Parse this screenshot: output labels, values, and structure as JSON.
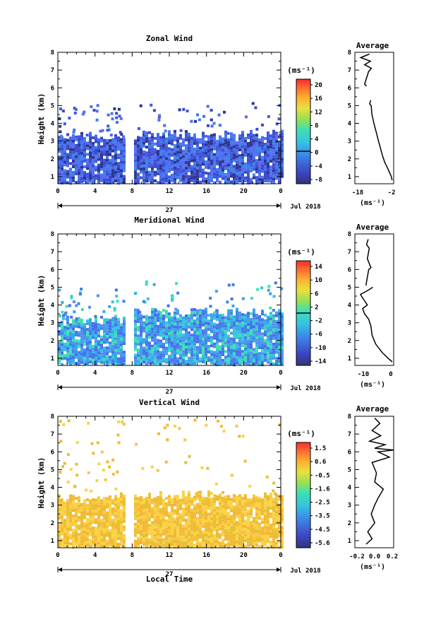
{
  "chart_data": [
    {
      "type": "heatmap",
      "title": "Zonal Wind",
      "ylabel": "Height (km)",
      "yticks": [
        "1",
        "2",
        "3",
        "4",
        "5",
        "6",
        "7",
        "8"
      ],
      "xticks": [
        "0",
        "4",
        "8",
        "12",
        "16",
        "20",
        "0"
      ],
      "ylim": [
        0.6,
        8.0
      ],
      "xlim": [
        0,
        24
      ],
      "date_label": "27",
      "month_label": "Jul 2018",
      "colorbar_unit": "(ms⁻¹)",
      "colorbar_ticks": [
        "20",
        "16",
        "12",
        "8",
        "4",
        "0",
        "-4",
        "-8"
      ],
      "colorbar_range": [
        -10,
        22
      ],
      "data_regions": [
        {
          "t_start": 0,
          "t_end": 7.0,
          "h_bottom": 0.7,
          "h_top": 3.3
        },
        {
          "t_start": 8.2,
          "t_end": 24,
          "h_bottom": 0.7,
          "h_top": 3.4
        }
      ],
      "profile": {
        "title": "Average",
        "xlabel": "(ms⁻¹)",
        "xticks": [
          "-18",
          "-2"
        ],
        "xlim": [
          -20,
          0
        ],
        "points": [
          [
            -0.8,
            0.8
          ],
          [
            -1.2,
            1.0
          ],
          [
            -2.0,
            1.2
          ],
          [
            -3.2,
            1.5
          ],
          [
            -4.6,
            1.8
          ],
          [
            -5.8,
            2.2
          ],
          [
            -6.8,
            2.6
          ],
          [
            -7.8,
            3.0
          ],
          [
            -9.0,
            3.5
          ],
          [
            -10.2,
            4.0
          ],
          [
            -11.2,
            4.5
          ],
          [
            -11.6,
            5.0
          ],
          [
            -12.4,
            5.1
          ],
          [
            -11.8,
            5.3
          ]
        ],
        "upper_points": [
          [
            -14,
            6.1
          ],
          [
            -15,
            6.2
          ],
          [
            -13,
            6.9
          ],
          [
            -11.5,
            7.1
          ],
          [
            -15,
            7.3
          ],
          [
            -12,
            7.5
          ],
          [
            -17,
            7.7
          ],
          [
            -12.5,
            7.9
          ]
        ]
      }
    },
    {
      "type": "heatmap",
      "title": "Meridional Wind",
      "ylabel": "Height (km)",
      "yticks": [
        "1",
        "2",
        "3",
        "4",
        "5",
        "6",
        "7",
        "8"
      ],
      "xticks": [
        "0",
        "4",
        "8",
        "12",
        "16",
        "20",
        "0"
      ],
      "ylim": [
        0.6,
        8.0
      ],
      "xlim": [
        0,
        24
      ],
      "date_label": "27",
      "month_label": "Jul 2018",
      "colorbar_unit": "(ms⁻¹)",
      "colorbar_ticks": [
        "14",
        "10",
        "6",
        "2",
        "-2",
        "-6",
        "-10",
        "-14"
      ],
      "colorbar_range": [
        -16,
        16
      ],
      "data_regions": [
        {
          "t_start": 0,
          "t_end": 7.0,
          "h_bottom": 0.7,
          "h_top": 3.2
        },
        {
          "t_start": 8.2,
          "t_end": 24,
          "h_bottom": 0.7,
          "h_top": 3.6
        }
      ],
      "profile": {
        "title": "Average",
        "xlabel": "(ms⁻¹)",
        "xticks": [
          "-10",
          "0"
        ],
        "xlim": [
          -13,
          1
        ],
        "points": [
          [
            0.5,
            0.8
          ],
          [
            -1.0,
            1.0
          ],
          [
            -3.0,
            1.3
          ],
          [
            -5.5,
            1.8
          ],
          [
            -6.8,
            2.3
          ],
          [
            -7.2,
            2.8
          ],
          [
            -8.0,
            3.2
          ],
          [
            -9.5,
            3.5
          ],
          [
            -10.2,
            3.8
          ],
          [
            -8.5,
            4.0
          ],
          [
            -9.8,
            4.3
          ],
          [
            -11.0,
            4.6
          ],
          [
            -8.5,
            4.8
          ],
          [
            -6.5,
            5.0
          ]
        ],
        "upper_points": [
          [
            -9,
            5.1
          ],
          [
            -8,
            6.0
          ],
          [
            -7.2,
            6.1
          ],
          [
            -8.5,
            6.6
          ],
          [
            -7.8,
            7.2
          ],
          [
            -8.8,
            7.4
          ],
          [
            -8.2,
            7.7
          ]
        ]
      }
    },
    {
      "type": "heatmap",
      "title": "Vertical Wind",
      "ylabel": "Height (km)",
      "yticks": [
        "1",
        "2",
        "3",
        "4",
        "5",
        "6",
        "7",
        "8"
      ],
      "xticks": [
        "0",
        "4",
        "8",
        "12",
        "16",
        "20",
        "0"
      ],
      "ylim": [
        0.6,
        8.0
      ],
      "xlim": [
        0,
        24
      ],
      "date_label": "27",
      "month_label": "Jul 2018",
      "colorbar_unit": "(ms⁻¹)",
      "colorbar_ticks": [
        "1.5",
        "0.6",
        "-0.5",
        "-1.6",
        "-2.5",
        "-3.5",
        "-4.5",
        "-5.6"
      ],
      "colorbar_range": [
        -6,
        2
      ],
      "data_regions": [
        {
          "t_start": 0,
          "t_end": 7.0,
          "h_bottom": 0.7,
          "h_top": 3.5
        },
        {
          "t_start": 8.2,
          "t_end": 24,
          "h_bottom": 0.7,
          "h_top": 3.6
        }
      ],
      "profile": {
        "title": "Average",
        "xlabel": "(ms⁻¹)",
        "xticks": [
          "-0.2",
          "0.0",
          "0.2"
        ],
        "xlim": [
          -0.25,
          0.2
        ],
        "points": [
          [
            -0.12,
            0.8
          ],
          [
            -0.05,
            1.1
          ],
          [
            -0.1,
            1.5
          ],
          [
            -0.02,
            2.0
          ],
          [
            -0.06,
            2.5
          ],
          [
            -0.02,
            3.0
          ],
          [
            0.02,
            3.4
          ],
          [
            0.08,
            3.9
          ],
          [
            -0.02,
            4.3
          ],
          [
            0.0,
            4.8
          ],
          [
            -0.05,
            5.4
          ],
          [
            0.15,
            5.7
          ],
          [
            0.02,
            6.0
          ],
          [
            0.2,
            6.1
          ],
          [
            -0.02,
            6.2
          ],
          [
            0.1,
            6.4
          ],
          [
            -0.08,
            6.6
          ],
          [
            0.05,
            6.9
          ],
          [
            -0.05,
            7.2
          ],
          [
            0.04,
            7.6
          ],
          [
            -0.02,
            7.9
          ]
        ]
      }
    }
  ],
  "shared_xlabel": "Local Time"
}
